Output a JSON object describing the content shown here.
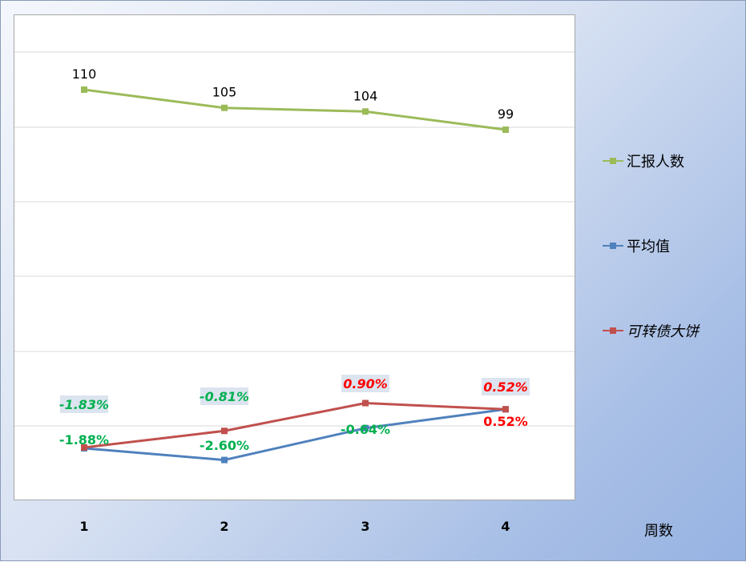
{
  "chart_data": {
    "type": "line",
    "categories": [
      "1",
      "2",
      "3",
      "4"
    ],
    "xlabel": "周数",
    "series": [
      {
        "name": "汇报人数",
        "color": "#9bbb59",
        "values": [
          110,
          105,
          104,
          99
        ],
        "labels": [
          "110",
          "105",
          "104",
          "99"
        ],
        "label_color": "#000000"
      },
      {
        "name": "平均值",
        "color": "#4f81bd",
        "values": [
          -1.88,
          -2.6,
          -0.64,
          0.52
        ],
        "labels": [
          "-1.88%",
          "-2.60%",
          "-0.64%",
          "0.52%"
        ],
        "label_colors": [
          "#00b050",
          "#00b050",
          "#00b050",
          "#ff0000"
        ]
      },
      {
        "name": "可转债大饼",
        "color": "#c0504d",
        "values": [
          -1.83,
          -0.81,
          0.9,
          0.52
        ],
        "labels": [
          "-1.83%",
          "-0.81%",
          "0.90%",
          "0.52%"
        ],
        "label_colors": [
          "#00b050",
          "#00b050",
          "#ff0000",
          "#ff0000"
        ]
      }
    ],
    "legend_position": "right",
    "grid": true
  }
}
